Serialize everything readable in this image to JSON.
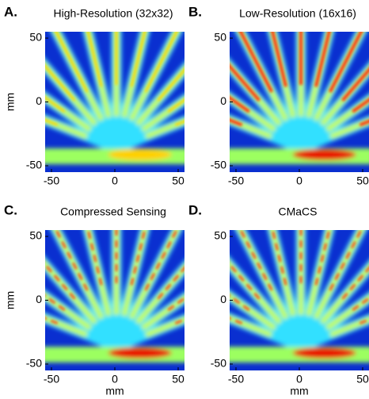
{
  "chart_data": [
    {
      "type": "heatmap",
      "panel": "A.",
      "title": "High-Resolution (32x32)",
      "ylabel": "mm",
      "xlim": [
        -55,
        55
      ],
      "ylim": [
        -55,
        55
      ],
      "xticks": [
        -50,
        0,
        50
      ],
      "yticks": [
        -50,
        0,
        50
      ]
    },
    {
      "type": "heatmap",
      "panel": "B.",
      "title": "Low-Resolution (16x16)",
      "xlim": [
        -55,
        55
      ],
      "ylim": [
        -55,
        55
      ],
      "xticks": [
        -50,
        0,
        50
      ],
      "yticks": [
        -50,
        0,
        50
      ]
    },
    {
      "type": "heatmap",
      "panel": "C.",
      "title": "Compressed Sensing",
      "xlabel": "mm",
      "ylabel": "mm",
      "xlim": [
        -55,
        55
      ],
      "ylim": [
        -55,
        55
      ],
      "xticks": [
        -50,
        0,
        50
      ],
      "yticks": [
        -50,
        0,
        50
      ]
    },
    {
      "type": "heatmap",
      "panel": "D.",
      "title": "CMaCS",
      "xlabel": "mm",
      "xlim": [
        -55,
        55
      ],
      "ylim": [
        -55,
        55
      ],
      "xticks": [
        -50,
        0,
        50
      ],
      "yticks": [
        -50,
        0,
        50
      ]
    }
  ]
}
